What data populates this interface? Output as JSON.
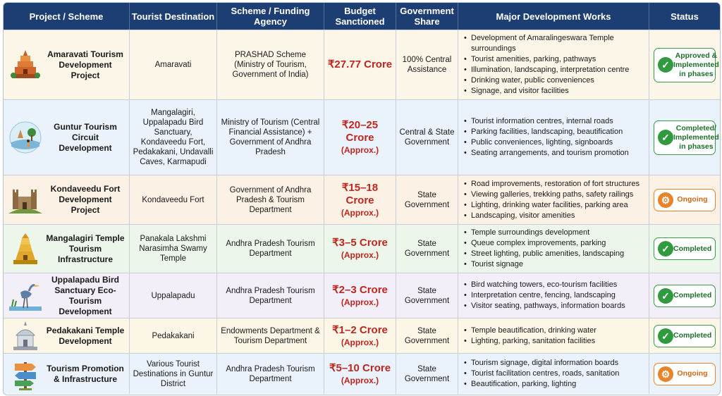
{
  "columns": [
    "Project / Scheme",
    "Tourist Destination",
    "Scheme / Funding Agency",
    "Budget Sanctioned",
    "Government Share",
    "Major Development Works",
    "Status"
  ],
  "colors": {
    "header_bg": "#1d3e73",
    "budget_red": "#c0261f",
    "completed_green": "#2f9a3e",
    "ongoing_orange": "#e8832a"
  },
  "rows": [
    {
      "project": "Amaravati Tourism Development Project",
      "icon": "temple-tower-icon",
      "destination": "Amaravati",
      "agency": "PRASHAD Scheme (Ministry of Tourism, Government of India)",
      "budget": "₹27.77 Crore",
      "approx": "",
      "share": "100% Central Assistance",
      "works": [
        "Development of Amaralingeswara Temple surroundings",
        "Tourist amenities, parking, pathways",
        "Illumination, landscaping, interpretation centre",
        "Drinking water, public conveniences",
        "Signage, and visitor facilities"
      ],
      "status": "Approved & Implemented in phases",
      "status_type": "done"
    },
    {
      "project": "Guntur Tourism Circuit Development",
      "icon": "tourism-circuit-icon",
      "destination": "Mangalagiri, Uppalapadu Bird Sanctuary, Kondaveedu Fort, Pedakakani, Undavalli Caves, Karmapudi",
      "agency": "Ministry of Tourism (Central Financial Assistance) + Government of Andhra Pradesh",
      "budget": "₹20–25 Crore",
      "approx": "(Approx.)",
      "share": "Central & State Government",
      "works": [
        "Tourist information centres, internal roads",
        "Parking facilities, landscaping, beautification",
        "Public conveniences, lighting, signboards",
        "Seating arrangements, and tourism promotion"
      ],
      "status": "Completed/ Implemented in phases",
      "status_type": "done"
    },
    {
      "project": "Kondaveedu Fort Development Project",
      "icon": "fort-icon",
      "destination": "Kondaveedu Fort",
      "agency": "Government of Andhra Pradesh & Tourism Department",
      "budget": "₹15–18 Crore",
      "approx": "(Approx.)",
      "share": "State Government",
      "works": [
        "Road improvements, restoration of fort structures",
        "Viewing galleries, trekking paths, safety railings",
        "Lighting, drinking water facilities, parking area",
        "Landscaping, visitor amenities"
      ],
      "status": "Ongoing",
      "status_type": "ongoing"
    },
    {
      "project": "Mangalagiri Temple Tourism Infrastructure",
      "icon": "gopuram-icon",
      "destination": "Panakala Lakshmi Narasimha Swamy Temple",
      "agency": "Andhra Pradesh Tourism Department",
      "budget": "₹3–5 Crore",
      "approx": "(Approx.)",
      "share": "State Government",
      "works": [
        "Temple surroundings development",
        "Queue complex improvements, parking",
        "Street lighting, public amenities, landscaping",
        "Tourist signage"
      ],
      "status": "Completed",
      "status_type": "done"
    },
    {
      "project": "Uppalapadu Bird Sanctuary Eco-Tourism Development",
      "icon": "heron-bird-icon",
      "destination": "Uppalapadu",
      "agency": "Andhra Pradesh Tourism Department",
      "budget": "₹2–3 Crore",
      "approx": "(Approx.)",
      "share": "State Government",
      "works": [
        "Bird watching towers, eco-tourism facilities",
        "Interpretation centre, fencing, landscaping",
        "Visitor seating, pathways, information boards"
      ],
      "status": "Completed",
      "status_type": "done"
    },
    {
      "project": "Pedakakani Temple Development",
      "icon": "shrine-icon",
      "destination": "Pedakakani",
      "agency": "Endowments Department & Tourism Department",
      "budget": "₹1–2 Crore",
      "approx": "(Approx.)",
      "share": "State Government",
      "works": [
        "Temple beautification, drinking water",
        "Lighting, parking, sanitation facilities"
      ],
      "status": "Completed",
      "status_type": "done"
    },
    {
      "project": "Tourism Promotion & Infrastructure",
      "icon": "signpost-icon",
      "destination": "Various Tourist Destinations in Guntur District",
      "agency": "Andhra Pradesh Tourism Department",
      "budget": "₹5–10 Crore",
      "approx": "(Approx.)",
      "share": "State Government",
      "works": [
        "Tourism signage, digital information boards",
        "Tourist facilitation centres, roads, sanitation",
        "Beautification, parking, lighting"
      ],
      "status": "Ongoing",
      "status_type": "ongoing"
    }
  ]
}
